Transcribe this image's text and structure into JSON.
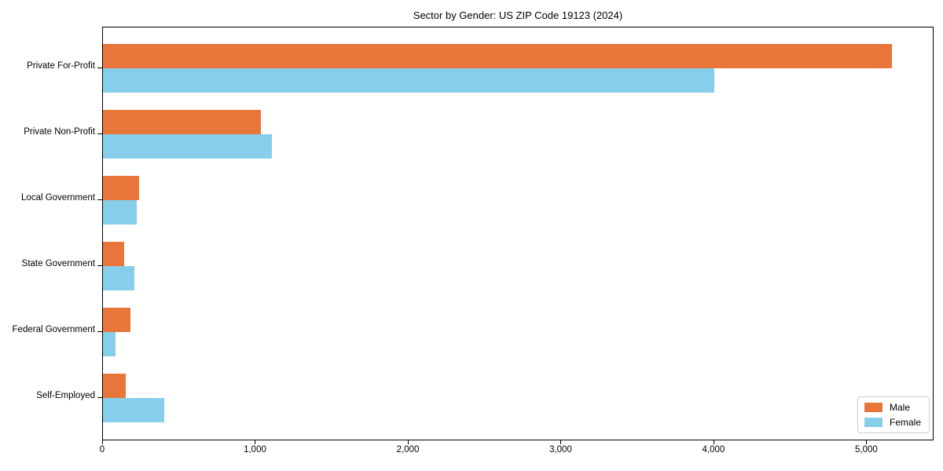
{
  "title": "Sector by Gender: US ZIP Code 19123 (2024)",
  "chart_data": {
    "type": "bar",
    "orientation": "horizontal",
    "title": "Sector by Gender: US ZIP Code 19123 (2024)",
    "categories": [
      "Private For-Profit",
      "Private Non-Profit",
      "Local Government",
      "State Government",
      "Federal Government",
      "Self-Employed"
    ],
    "series": [
      {
        "name": "Male",
        "color": "#e8763b",
        "values": [
          5160,
          1035,
          235,
          140,
          180,
          150
        ]
      },
      {
        "name": "Female",
        "color": "#87ceeb",
        "values": [
          4000,
          1105,
          220,
          205,
          80,
          400
        ]
      }
    ],
    "xlabel": "",
    "ylabel": "",
    "xlim": [
      0,
      5440
    ],
    "x_ticks": [
      0,
      1000,
      2000,
      3000,
      4000,
      5000
    ],
    "x_tick_labels": [
      "0",
      "1,000",
      "2,000",
      "3,000",
      "4,000",
      "5,000"
    ],
    "grid": false,
    "legend": {
      "position": "lower right",
      "entries": [
        {
          "label": "Male",
          "color": "#e8763b"
        },
        {
          "label": "Female",
          "color": "#87ceeb"
        }
      ]
    }
  }
}
